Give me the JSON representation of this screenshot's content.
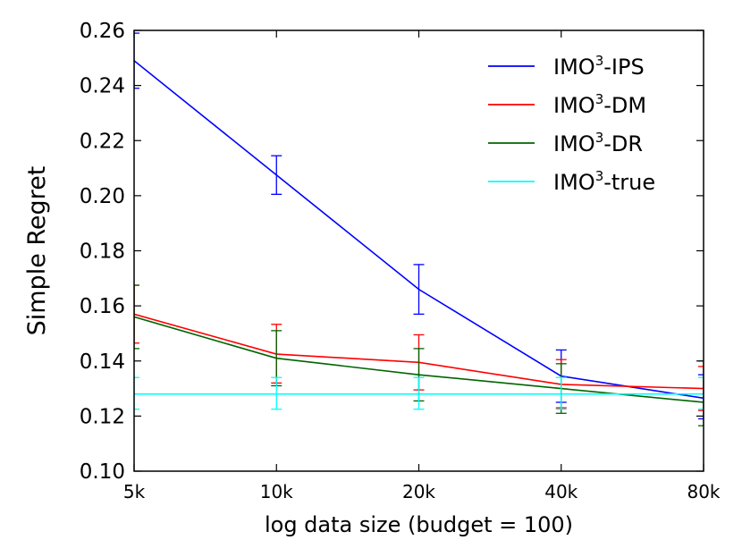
{
  "chart_data": {
    "type": "line",
    "xlabel": "log data size (budget = 100)",
    "ylabel": "Simple Regret",
    "x_scale": "log",
    "x": [
      5000,
      10000,
      20000,
      40000,
      80000
    ],
    "x_tick_labels": [
      "5k",
      "10k",
      "20k",
      "40k",
      "80k"
    ],
    "ylim": [
      0.1,
      0.26
    ],
    "y_ticks": [
      0.1,
      0.12,
      0.14,
      0.16,
      0.18,
      0.2,
      0.22,
      0.24,
      0.26
    ],
    "y_tick_labels": [
      "0.10",
      "0.12",
      "0.14",
      "0.16",
      "0.18",
      "0.20",
      "0.22",
      "0.24",
      "0.26"
    ],
    "grid": false,
    "legend_position": "top-right",
    "series": [
      {
        "name_base": "IMO",
        "name_sup": "3",
        "name_suffix": "-IPS",
        "color": "#0000ff",
        "values": [
          0.249,
          0.2075,
          0.166,
          0.1345,
          0.1265
        ],
        "err_low": [
          0.239,
          0.2005,
          0.157,
          0.125,
          0.119
        ],
        "err_high": [
          0.259,
          0.2145,
          0.175,
          0.144,
          0.135
        ]
      },
      {
        "name_base": "IMO",
        "name_sup": "3",
        "name_suffix": "-DM",
        "color": "#ff0000",
        "values": [
          0.157,
          0.1425,
          0.1395,
          0.1315,
          0.13
        ],
        "err_low": [
          0.1465,
          0.132,
          0.1295,
          0.123,
          0.122
        ],
        "err_high": [
          0.1675,
          0.1533,
          0.1495,
          0.1405,
          0.138
        ]
      },
      {
        "name_base": "IMO",
        "name_sup": "3",
        "name_suffix": "-DR",
        "color": "#006400",
        "values": [
          0.156,
          0.141,
          0.135,
          0.13,
          0.125
        ],
        "err_low": [
          0.1445,
          0.131,
          0.1255,
          0.121,
          0.1165
        ],
        "err_high": [
          0.1675,
          0.151,
          0.1445,
          0.139,
          0.14
        ]
      },
      {
        "name_base": "IMO",
        "name_sup": "3",
        "name_suffix": "-true",
        "color": "#00ffff",
        "values": [
          0.128,
          0.128,
          0.128,
          0.128,
          0.128
        ],
        "err_low": [
          0.1225,
          0.1225,
          0.1225,
          0.1225,
          0.1225
        ],
        "err_high": [
          0.134,
          0.134,
          0.134,
          0.134,
          0.134
        ]
      }
    ]
  }
}
